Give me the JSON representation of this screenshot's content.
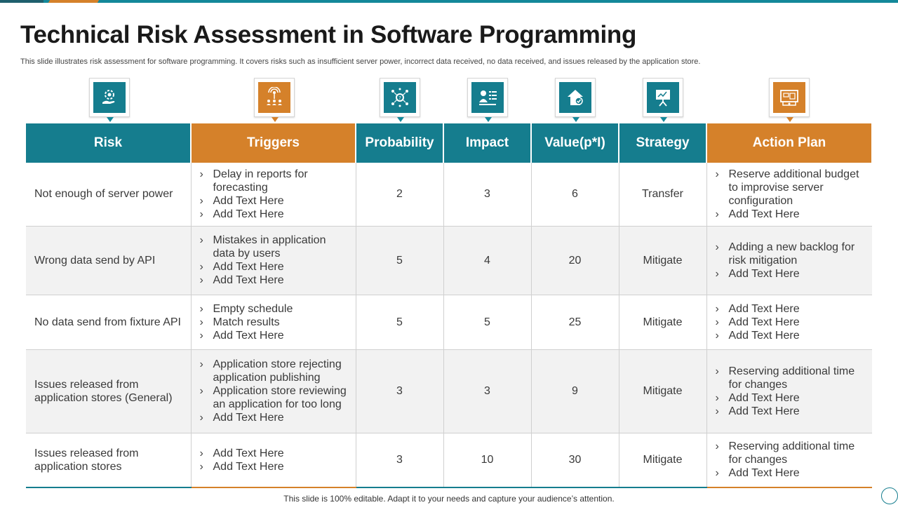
{
  "title": "Technical Risk Assessment in Software Programming",
  "subtitle": "This slide illustrates risk assessment for software programming. It covers risks such as insufficient server power, incorrect data received, no data received, and issues released by the application store.",
  "colors": {
    "teal": "#157d8e",
    "orange": "#d5812a",
    "alt_row": "#f2f2f2"
  },
  "icons": [
    "gear-hand-icon",
    "broadcast-team-icon",
    "gear-network-icon",
    "person-list-icon",
    "house-check-icon",
    "presentation-icon",
    "blueprint-icon"
  ],
  "headers": [
    "Risk",
    "Triggers",
    "Probability",
    "Impact",
    "Value(p*I)",
    "Strategy",
    "Action Plan"
  ],
  "rows": [
    {
      "risk": "Not enough of server power",
      "triggers": [
        "Delay in reports for forecasting",
        "Add Text Here",
        "Add Text Here"
      ],
      "probability": "2",
      "impact": "3",
      "value": "6",
      "strategy": "Transfer",
      "actions": [
        "Reserve additional budget to improvise server configuration",
        "Add Text Here"
      ]
    },
    {
      "risk": "Wrong data send by  API",
      "triggers": [
        "Mistakes in application data by users",
        "Add Text Here",
        "Add Text Here"
      ],
      "probability": "5",
      "impact": "4",
      "value": "20",
      "strategy": "Mitigate",
      "actions": [
        "Adding a new backlog for risk mitigation",
        "Add Text Here"
      ]
    },
    {
      "risk": "No data send from fixture API",
      "triggers": [
        "Empty schedule",
        "Match results",
        "Add Text Here"
      ],
      "probability": "5",
      "impact": "5",
      "value": "25",
      "strategy": "Mitigate",
      "actions": [
        "Add Text Here",
        "Add Text Here",
        "Add Text Here"
      ]
    },
    {
      "risk": "Issues  released from application stores (General)",
      "triggers": [
        "Application store rejecting application publishing",
        "Application store reviewing an application for too long",
        "Add Text Here"
      ],
      "probability": "3",
      "impact": "3",
      "value": "9",
      "strategy": "Mitigate",
      "actions": [
        "Reserving additional time for changes",
        "Add Text Here",
        "Add Text Here"
      ]
    },
    {
      "risk": "Issues  released from application stores",
      "triggers": [
        "Add Text Here",
        "Add Text Here"
      ],
      "probability": "3",
      "impact": "10",
      "value": "30",
      "strategy": "Mitigate",
      "actions": [
        "Reserving additional time for changes",
        "Add Text Here"
      ]
    }
  ],
  "footer": "This slide is 100% editable. Adapt it to your needs and capture your audience’s attention."
}
